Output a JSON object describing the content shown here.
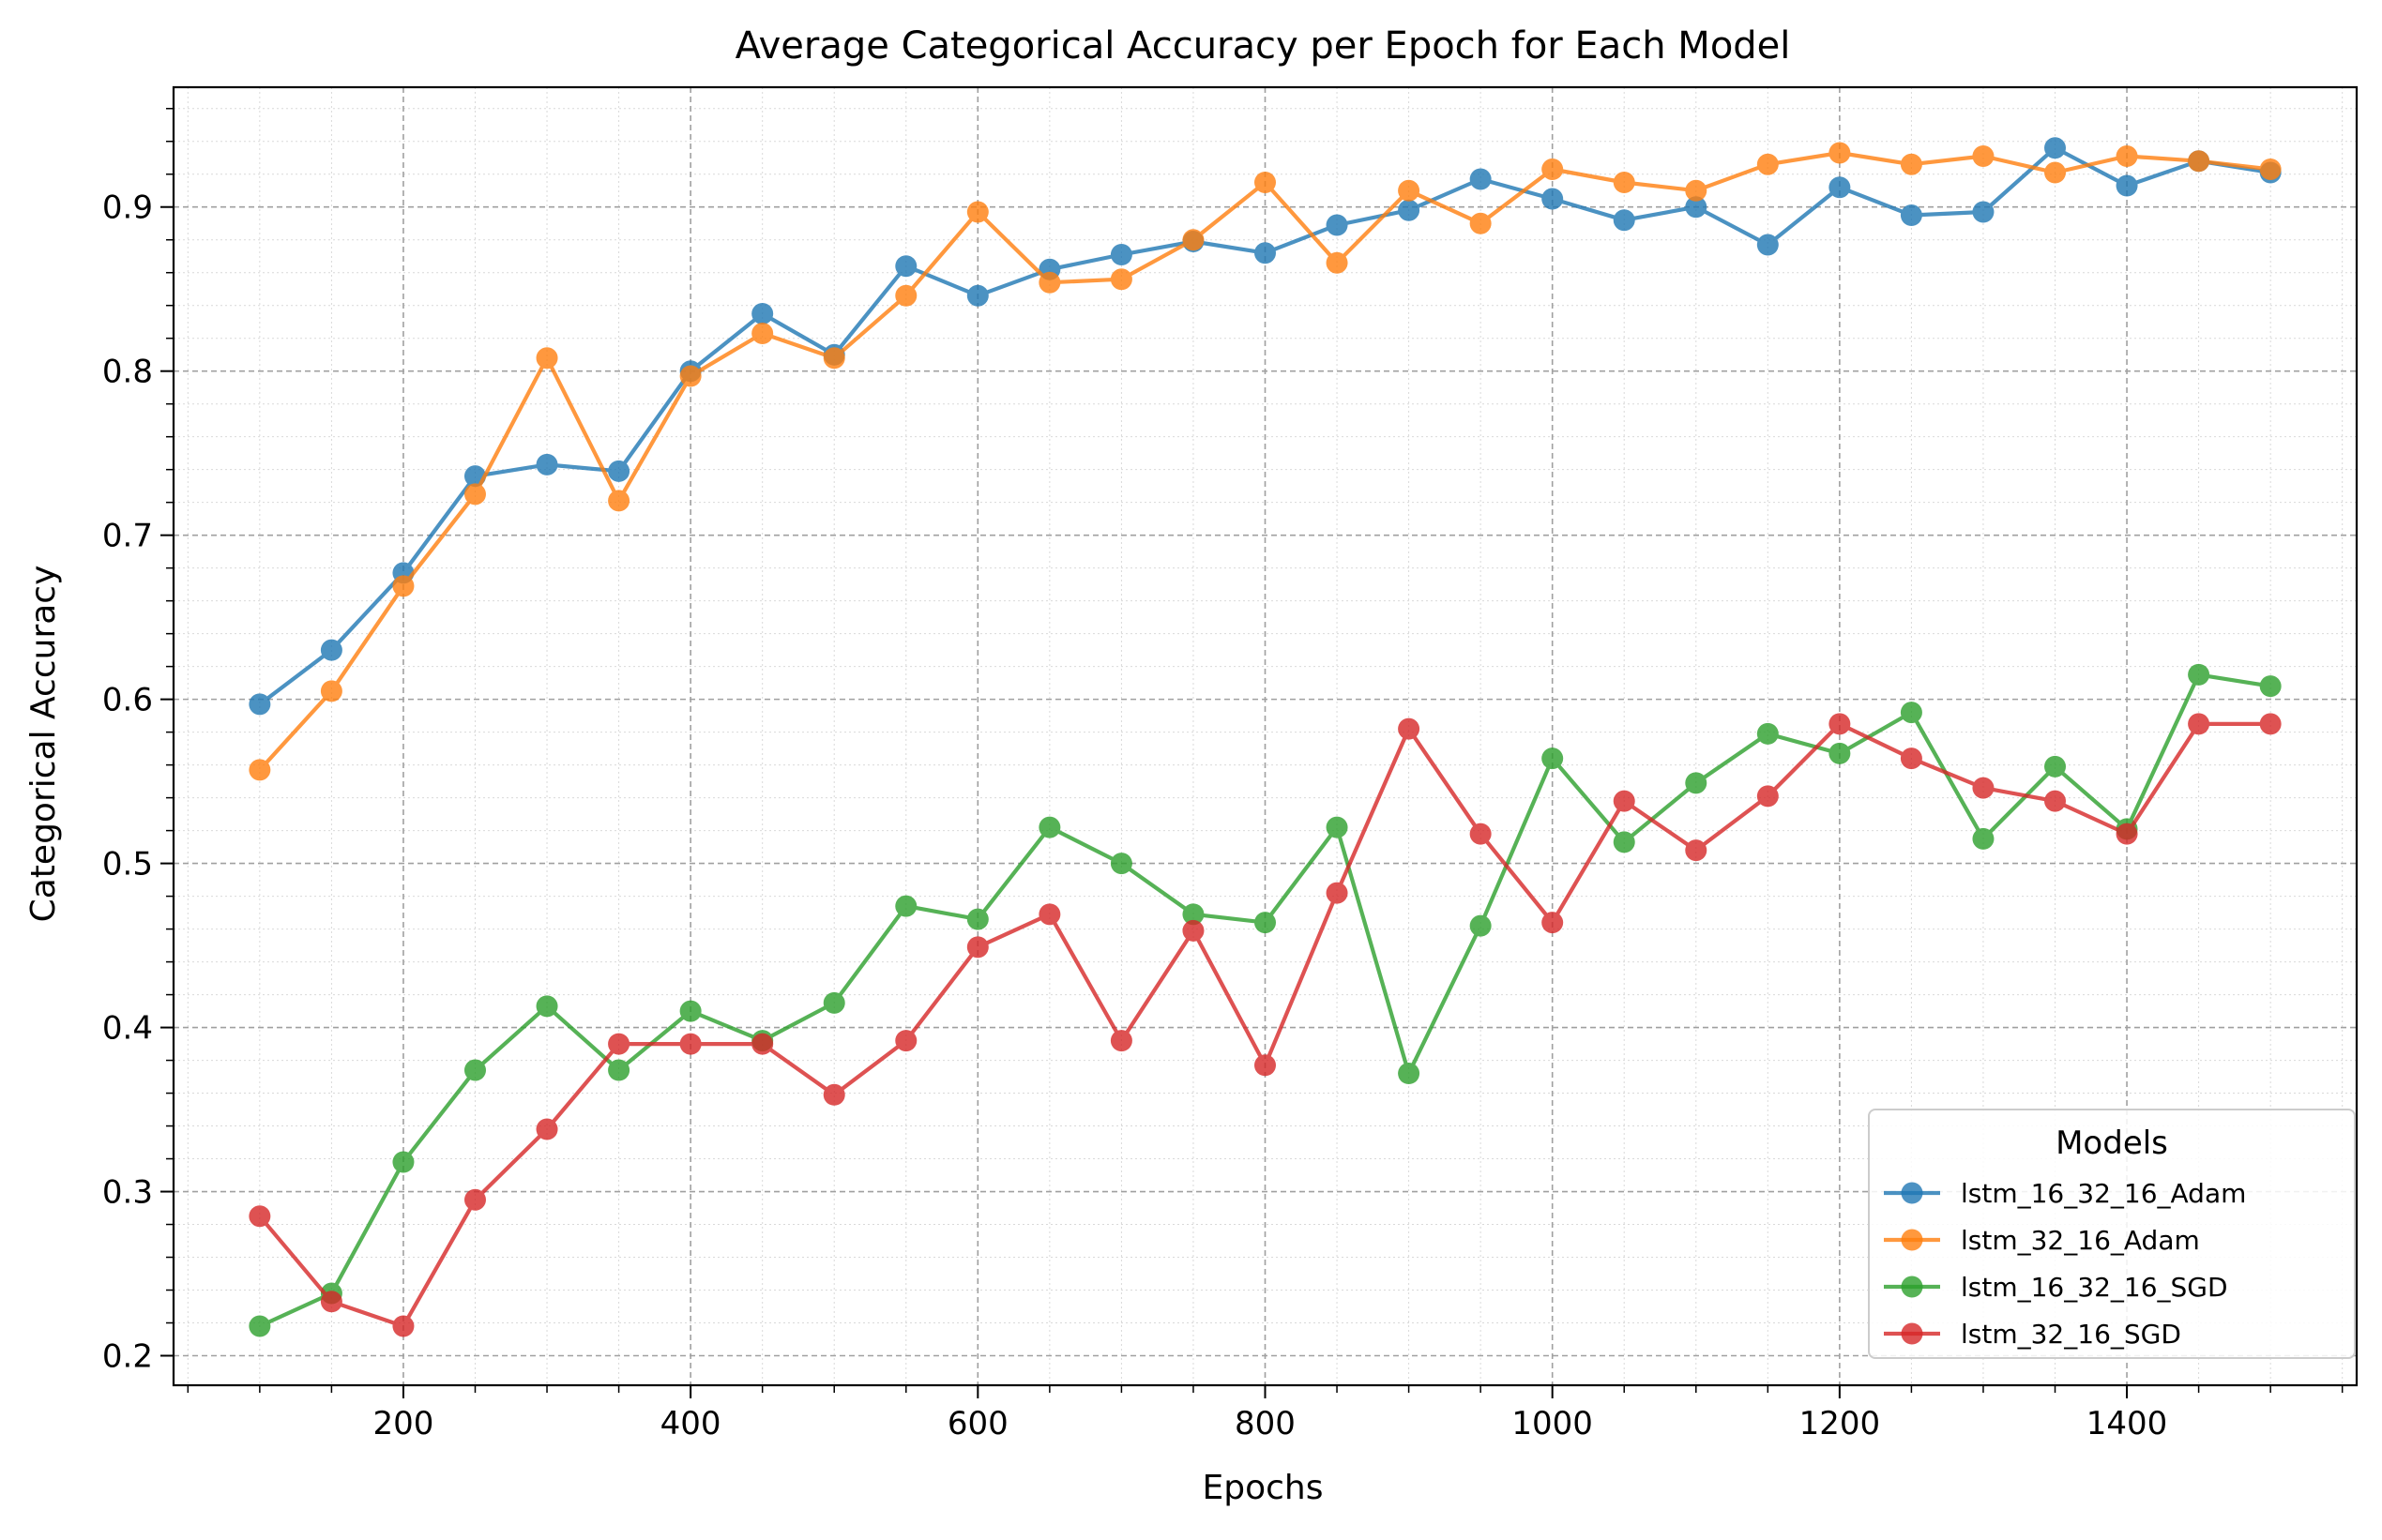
{
  "chart_data": {
    "type": "line",
    "title": "Average Categorical Accuracy per Epoch for Each Model",
    "xlabel": "Epochs",
    "ylabel": "Categorical Accuracy",
    "xlim": [
      40,
      1560
    ],
    "ylim": [
      0.182,
      0.973
    ],
    "xticks": [
      200,
      400,
      600,
      800,
      1000,
      1200,
      1400
    ],
    "xtick_labels": [
      "200",
      "400",
      "600",
      "800",
      "1000",
      "1200",
      "1400"
    ],
    "yticks": [
      0.2,
      0.3,
      0.4,
      0.5,
      0.6,
      0.7,
      0.8,
      0.9
    ],
    "ytick_labels": [
      "0.2",
      "0.3",
      "0.4",
      "0.5",
      "0.6",
      "0.7",
      "0.8",
      "0.9"
    ],
    "grid": true,
    "legend": {
      "title": "Models",
      "placement": "lower-right"
    },
    "x": [
      100,
      150,
      200,
      250,
      300,
      350,
      400,
      450,
      500,
      550,
      600,
      650,
      700,
      750,
      800,
      850,
      900,
      950,
      1000,
      1050,
      1100,
      1150,
      1200,
      1250,
      1300,
      1350,
      1400,
      1450,
      1500
    ],
    "series": [
      {
        "name": "lstm_16_32_16_Adam",
        "color": "#1f77b4",
        "values": [
          0.597,
          0.63,
          0.677,
          0.736,
          0.743,
          0.739,
          0.8,
          0.835,
          0.81,
          0.864,
          0.846,
          0.862,
          0.871,
          0.879,
          0.872,
          0.889,
          0.898,
          0.917,
          0.905,
          0.892,
          0.9,
          0.877,
          0.912,
          0.895,
          0.897,
          0.936,
          0.913,
          0.928,
          0.921
        ]
      },
      {
        "name": "lstm_32_16_Adam",
        "color": "#ff7f0e",
        "values": [
          0.557,
          0.605,
          0.669,
          0.725,
          0.808,
          0.721,
          0.797,
          0.823,
          0.808,
          0.846,
          0.897,
          0.854,
          0.856,
          0.88,
          0.915,
          0.866,
          0.91,
          0.89,
          0.923,
          0.915,
          0.91,
          0.926,
          0.933,
          0.926,
          0.931,
          0.921,
          0.931,
          0.928,
          0.923
        ]
      },
      {
        "name": "lstm_16_32_16_SGD",
        "color": "#2ca02c",
        "values": [
          0.218,
          0.238,
          0.318,
          0.374,
          0.413,
          0.374,
          0.41,
          0.392,
          0.415,
          0.474,
          0.466,
          0.522,
          0.5,
          0.469,
          0.464,
          0.522,
          0.372,
          0.462,
          0.564,
          0.513,
          0.549,
          0.579,
          0.567,
          0.592,
          0.515,
          0.559,
          0.521,
          0.615,
          0.608
        ]
      },
      {
        "name": "lstm_32_16_SGD",
        "color": "#d62728",
        "values": [
          0.285,
          0.233,
          0.218,
          0.295,
          0.338,
          0.39,
          0.39,
          0.39,
          0.359,
          0.392,
          0.449,
          0.469,
          0.392,
          0.459,
          0.377,
          0.482,
          0.582,
          0.518,
          0.464,
          0.538,
          0.508,
          0.541,
          0.585,
          0.564,
          0.546,
          0.538,
          0.518,
          0.585,
          0.585
        ]
      }
    ]
  }
}
